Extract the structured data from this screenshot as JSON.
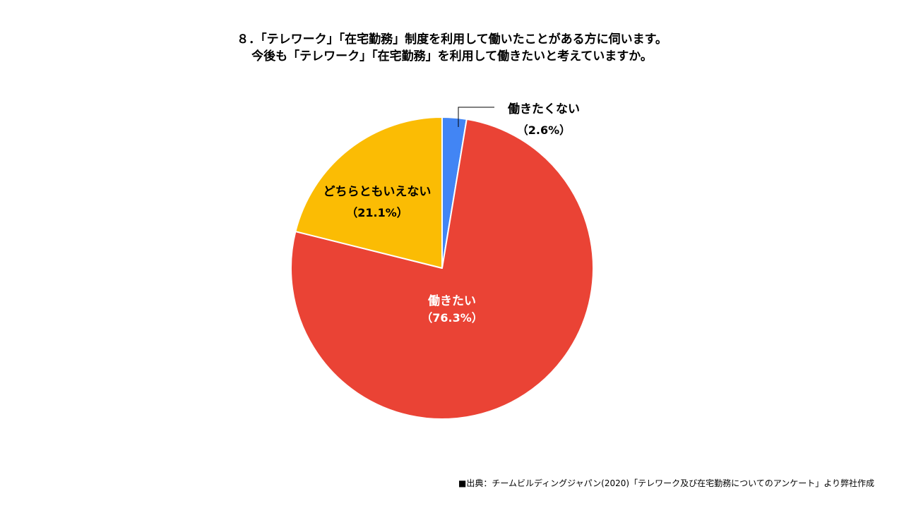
{
  "title": {
    "line1": "８．「テレワーク」「在宅勤務」制度を利用して働いたことがある方に伺います。",
    "line2": "今後も「テレワーク」「在宅勤務」を利用して働きたいと考えていますか。"
  },
  "source": "■出典：チームビルディングジャパン(2020)「テレワーク及び在宅勤務についてのアンケート」より弊社作成",
  "chart_data": {
    "type": "pie",
    "slices": [
      {
        "label": "働きたくない",
        "value": 2.6,
        "value_label": "（2.6%）",
        "color": "#4285f4"
      },
      {
        "label": "働きたい",
        "value": 76.3,
        "value_label": "（76.3%）",
        "color": "#ea4335"
      },
      {
        "label": "どちらともいえない",
        "value": 21.1,
        "value_label": "（21.1%）",
        "color": "#fbbc04"
      }
    ],
    "start_angle": "12 o'clock",
    "direction": "clockwise",
    "legend": "none (labels on/next to slices)"
  }
}
